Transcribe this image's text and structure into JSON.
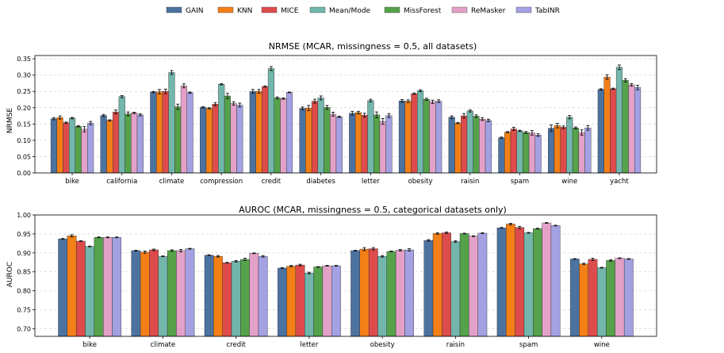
{
  "legend": {
    "entries": [
      {
        "name": "GAIN",
        "color": "#4c72a0"
      },
      {
        "name": "KNN",
        "color": "#f47f17"
      },
      {
        "name": "MICE",
        "color": "#dd4c4b"
      },
      {
        "name": "Mean/Mode",
        "color": "#72b6ac"
      },
      {
        "name": "MissForest",
        "color": "#55a24a"
      },
      {
        "name": "ReMasker",
        "color": "#e3a1c8"
      },
      {
        "name": "TabINR",
        "color": "#a3a1e2"
      }
    ]
  },
  "chart_data": [
    {
      "type": "bar",
      "title": "NRMSE (MCAR, missingness = 0.5, all datasets)",
      "xlabel": "",
      "ylabel": "NRMSE",
      "ylim": [
        0,
        0.36
      ],
      "yticks": [
        "0.00",
        "0.05",
        "0.10",
        "0.15",
        "0.20",
        "0.25",
        "0.30",
        "0.35"
      ],
      "grid": true,
      "categories": [
        "bike",
        "california",
        "climate",
        "compression",
        "credit",
        "diabetes",
        "letter",
        "obesity",
        "raisin",
        "spam",
        "wine",
        "yacht"
      ],
      "series": [
        {
          "name": "GAIN",
          "values": [
            0.166,
            0.176,
            0.248,
            0.201,
            0.25,
            0.198,
            0.183,
            0.221,
            0.171,
            0.108,
            0.137,
            0.256
          ],
          "errors": [
            0.003,
            0.003,
            0.002,
            0.002,
            0.006,
            0.004,
            0.006,
            0.004,
            0.004,
            0.002,
            0.01,
            0.002
          ]
        },
        {
          "name": "KNN",
          "values": [
            0.17,
            0.161,
            0.249,
            0.198,
            0.25,
            0.199,
            0.185,
            0.22,
            0.153,
            0.125,
            0.145,
            0.294
          ],
          "errors": [
            0.005,
            0.002,
            0.007,
            0.002,
            0.006,
            0.008,
            0.004,
            0.004,
            0.002,
            0.002,
            0.007,
            0.007
          ]
        },
        {
          "name": "MICE",
          "values": [
            0.154,
            0.187,
            0.25,
            0.211,
            0.265,
            0.22,
            0.177,
            0.243,
            0.175,
            0.135,
            0.14,
            0.258
          ],
          "errors": [
            0.002,
            0.006,
            0.007,
            0.005,
            0.002,
            0.006,
            0.006,
            0.002,
            0.007,
            0.005,
            0.004,
            0.002
          ]
        },
        {
          "name": "Mean/Mode",
          "values": [
            0.168,
            0.234,
            0.308,
            0.272,
            0.32,
            0.23,
            0.222,
            0.252,
            0.19,
            0.129,
            0.171,
            0.324
          ],
          "errors": [
            0.002,
            0.003,
            0.006,
            0.002,
            0.006,
            0.006,
            0.004,
            0.003,
            0.003,
            0.002,
            0.005,
            0.007
          ]
        },
        {
          "name": "MissForest",
          "values": [
            0.143,
            0.181,
            0.203,
            0.236,
            0.23,
            0.201,
            0.178,
            0.226,
            0.174,
            0.124,
            0.138,
            0.284
          ],
          "errors": [
            0.002,
            0.006,
            0.008,
            0.008,
            0.003,
            0.006,
            0.009,
            0.003,
            0.004,
            0.003,
            0.003,
            0.005
          ]
        },
        {
          "name": "ReMasker",
          "values": [
            0.134,
            0.184,
            0.267,
            0.213,
            0.228,
            0.18,
            0.158,
            0.218,
            0.165,
            0.123,
            0.124,
            0.27
          ],
          "errors": [
            0.008,
            0.002,
            0.006,
            0.005,
            0.002,
            0.006,
            0.009,
            0.005,
            0.004,
            0.007,
            0.008,
            0.004
          ]
        },
        {
          "name": "TabINR",
          "values": [
            0.153,
            0.178,
            0.246,
            0.208,
            0.247,
            0.172,
            0.176,
            0.22,
            0.161,
            0.116,
            0.138,
            0.262
          ],
          "errors": [
            0.005,
            0.003,
            0.002,
            0.006,
            0.001,
            0.002,
            0.006,
            0.004,
            0.004,
            0.004,
            0.007,
            0.007
          ]
        }
      ]
    },
    {
      "type": "bar",
      "title": "AUROC (MCAR, missingness = 0.5, categorical datasets only)",
      "xlabel": "",
      "ylabel": "AUROC",
      "ylim": [
        0.68,
        1.0
      ],
      "yticks": [
        "0.70",
        "0.75",
        "0.80",
        "0.85",
        "0.90",
        "0.95",
        "1.00"
      ],
      "grid": true,
      "categories": [
        "bike",
        "climate",
        "credit",
        "letter",
        "obesity",
        "raisin",
        "spam",
        "wine"
      ],
      "series": [
        {
          "name": "GAIN",
          "values": [
            0.937,
            0.906,
            0.894,
            0.86,
            0.906,
            0.933,
            0.966,
            0.884
          ],
          "errors": [
            0.001,
            0.001,
            0.001,
            0.001,
            0.001,
            0.002,
            0.001,
            0.001
          ]
        },
        {
          "name": "KNN",
          "values": [
            0.945,
            0.902,
            0.891,
            0.865,
            0.91,
            0.951,
            0.976,
            0.871
          ],
          "errors": [
            0.003,
            0.003,
            0.002,
            0.002,
            0.004,
            0.002,
            0.002,
            0.002
          ]
        },
        {
          "name": "MICE",
          "values": [
            0.931,
            0.908,
            0.874,
            0.868,
            0.911,
            0.953,
            0.967,
            0.883
          ],
          "errors": [
            0.001,
            0.002,
            0.001,
            0.002,
            0.003,
            0.002,
            0.003,
            0.003
          ]
        },
        {
          "name": "Mean/Mode",
          "values": [
            0.917,
            0.891,
            0.878,
            0.847,
            0.891,
            0.93,
            0.953,
            0.861
          ],
          "errors": [
            0.001,
            0.001,
            0.002,
            0.002,
            0.002,
            0.002,
            0.001,
            0.001
          ]
        },
        {
          "name": "MissForest",
          "values": [
            0.941,
            0.906,
            0.883,
            0.863,
            0.904,
            0.951,
            0.964,
            0.88
          ],
          "errors": [
            0.001,
            0.002,
            0.003,
            0.001,
            0.001,
            0.001,
            0.001,
            0.002
          ]
        },
        {
          "name": "ReMasker",
          "values": [
            0.941,
            0.906,
            0.899,
            0.866,
            0.907,
            0.944,
            0.979,
            0.886
          ],
          "errors": [
            0.001,
            0.003,
            0.001,
            0.001,
            0.002,
            0.001,
            0.001,
            0.001
          ]
        },
        {
          "name": "TabINR",
          "values": [
            0.941,
            0.911,
            0.891,
            0.866,
            0.908,
            0.952,
            0.972,
            0.884
          ],
          "errors": [
            0.001,
            0.001,
            0.002,
            0.001,
            0.003,
            0.001,
            0.001,
            0.001
          ]
        }
      ]
    }
  ]
}
